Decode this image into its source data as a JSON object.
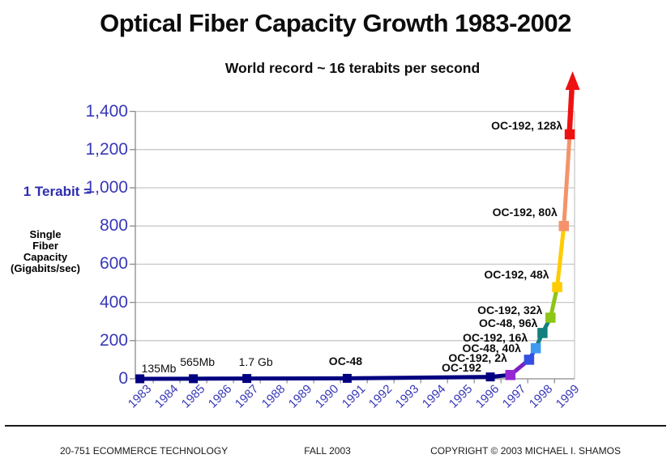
{
  "chart_data": {
    "type": "line",
    "title": "Optical Fiber Capacity Growth 1983-2002",
    "subtitle": "World record ~ 16 terabits per second",
    "ylabel": "Single Fiber Capacity (Gigabits/sec)",
    "xlabel": "",
    "ylim": [
      0,
      1400
    ],
    "xlim": [
      1983,
      1999
    ],
    "grid": true,
    "legend": false,
    "x_tick_labels": [
      "1983",
      "1984",
      "1985",
      "1986",
      "1987",
      "1988",
      "1989",
      "1990",
      "1991",
      "1992",
      "1993",
      "1994",
      "1995",
      "1996",
      "1997",
      "1998",
      "1999"
    ],
    "y_tick_labels": [
      "0",
      "200",
      "400",
      "600",
      "800",
      "1,000",
      "1,200",
      "1,400"
    ],
    "y_tick_values": [
      0,
      200,
      400,
      600,
      800,
      1000,
      1200,
      1400
    ],
    "points": [
      {
        "x": 1983,
        "y": 0.135,
        "label": "135Mb",
        "color": "#000080"
      },
      {
        "x": 1985,
        "y": 0.565,
        "label": "565Mb",
        "color": "#000080"
      },
      {
        "x": 1987,
        "y": 1.7,
        "label": "1.7 Gb",
        "color": "#000080"
      },
      {
        "x": 1990.75,
        "y": 2.5,
        "label": "OC-48",
        "color": "#000080"
      },
      {
        "x": 1996.1,
        "y": 10,
        "label": "OC-192",
        "color": "#000080"
      },
      {
        "x": 1996.85,
        "y": 20,
        "label": "OC-192, 2λ",
        "color": "#9627d2"
      },
      {
        "x": 1997.55,
        "y": 100,
        "label": "OC-48, 40λ",
        "color": "#3350e0"
      },
      {
        "x": 1997.8,
        "y": 160,
        "label": "OC-192, 16λ",
        "color": "#3e9bf0"
      },
      {
        "x": 1998.05,
        "y": 240,
        "label": "OC-48, 96λ",
        "color": "#12807e"
      },
      {
        "x": 1998.35,
        "y": 320,
        "label": "OC-192, 32λ",
        "color": "#8cc616"
      },
      {
        "x": 1998.6,
        "y": 480,
        "label": "OC-192, 48λ",
        "color": "#ffcc00"
      },
      {
        "x": 1998.85,
        "y": 800,
        "label": "OC-192, 80λ",
        "color": "#f4936b"
      },
      {
        "x": 1999.07,
        "y": 1280,
        "label": "OC-192, 128λ",
        "color": "#ee1111"
      }
    ],
    "segment_colors": [
      "#000080",
      "#000080",
      "#000080",
      "#000080",
      "#000080",
      "#7d1fc4",
      "#3350e0",
      "#12807e",
      "#12807e",
      "#8cc616",
      "#ffcc00",
      "#f4936b"
    ],
    "arrow_color": "#ee1111"
  },
  "y_axis": {
    "unit_note": "1 Terabit =",
    "label_lines": [
      "Single",
      "Fiber",
      "Capacity",
      "(Gigabits/sec)"
    ]
  },
  "footer": {
    "left": "20-751 ECOMMERCE TECHNOLOGY",
    "center": "FALL 2003",
    "right": "COPYRIGHT © 2003 MICHAEL I. SHAMOS"
  },
  "colors": {
    "axis_text": "#3838b8",
    "unit_note_text": "#2e2eae",
    "title_text": "#0d0d0d",
    "grid": "#c8c8c8",
    "axis_line": "#8a8a8a",
    "navy": "#000080",
    "arrow_red": "#ee1111"
  }
}
